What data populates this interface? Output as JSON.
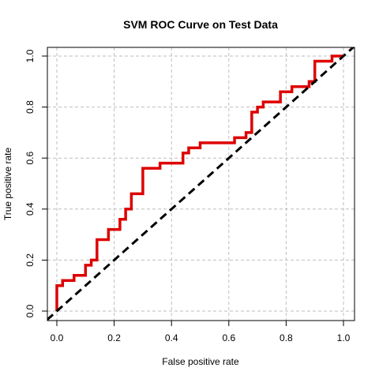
{
  "chart_data": {
    "type": "line",
    "title": "SVM ROC Curve on Test Data",
    "xlabel": "False positive rate",
    "ylabel": "True positive rate",
    "xlim": [
      0,
      1
    ],
    "ylim": [
      0,
      1
    ],
    "x_ticks": [
      "0.0",
      "0.2",
      "0.4",
      "0.6",
      "0.8",
      "1.0"
    ],
    "y_ticks": [
      "0.0",
      "0.2",
      "0.4",
      "0.6",
      "0.8",
      "1.0"
    ],
    "grid": true,
    "series": [
      {
        "color": "#dd0000",
        "style": "step",
        "x": [
          0,
          0,
          0.02,
          0.02,
          0.06,
          0.06,
          0.1,
          0.1,
          0.12,
          0.12,
          0.14,
          0.14,
          0.18,
          0.18,
          0.22,
          0.22,
          0.24,
          0.24,
          0.26,
          0.26,
          0.3,
          0.3,
          0.36,
          0.36,
          0.44,
          0.44,
          0.46,
          0.46,
          0.5,
          0.5,
          0.62,
          0.62,
          0.66,
          0.66,
          0.68,
          0.68,
          0.7,
          0.7,
          0.72,
          0.72,
          0.78,
          0.78,
          0.82,
          0.82,
          0.88,
          0.88,
          0.9,
          0.9,
          0.96,
          0.96,
          1.0
        ],
        "y": [
          0,
          0.1,
          0.1,
          0.12,
          0.12,
          0.14,
          0.14,
          0.18,
          0.18,
          0.2,
          0.2,
          0.28,
          0.28,
          0.32,
          0.32,
          0.36,
          0.36,
          0.4,
          0.4,
          0.46,
          0.46,
          0.56,
          0.56,
          0.58,
          0.58,
          0.62,
          0.62,
          0.64,
          0.64,
          0.66,
          0.66,
          0.68,
          0.68,
          0.7,
          0.7,
          0.78,
          0.78,
          0.8,
          0.8,
          0.82,
          0.82,
          0.86,
          0.86,
          0.88,
          0.88,
          0.9,
          0.9,
          0.98,
          0.98,
          1.0,
          1.0
        ]
      },
      {
        "color": "#000000",
        "style": "dashed",
        "x": [
          -0.1,
          1.1
        ],
        "y": [
          -0.1,
          1.1
        ]
      }
    ]
  }
}
